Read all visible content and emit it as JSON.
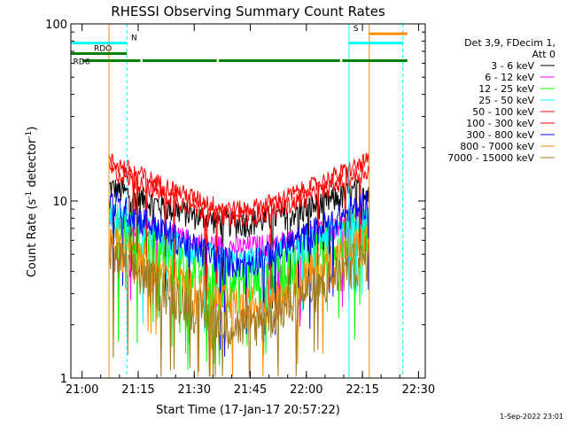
{
  "chart_data": {
    "type": "line",
    "title": "RHESSI Observing Summary Count Rates",
    "xlabel": "Start Time (17-Jan-17 20:57:22)",
    "ylabel_main": "Count Rate (s",
    "ylabel_sup": "-1",
    "ylabel_mid": " detector",
    "ylabel_sup2": "-1",
    "ylabel_end": ")",
    "yscale": "log",
    "ylim": [
      1,
      100
    ],
    "xlim_minutes": [
      20.95,
      22.53
    ],
    "x_ticks": [
      {
        "label": "21:00",
        "value": 21.0
      },
      {
        "label": "21:15",
        "value": 21.25
      },
      {
        "label": "21:30",
        "value": 21.5
      },
      {
        "label": "21:45",
        "value": 21.75
      },
      {
        "label": "22:00",
        "value": 22.0
      },
      {
        "label": "22:15",
        "value": 22.25
      },
      {
        "label": "22:30",
        "value": 22.5
      }
    ],
    "y_ticks": [
      {
        "label": "1",
        "value": 1
      },
      {
        "label": "10",
        "value": 10
      },
      {
        "label": "100",
        "value": 100
      }
    ],
    "legend_header": [
      "Det 3,9, FDecim 1,",
      "Att 0"
    ],
    "series": [
      {
        "name": "3 - 6 keV",
        "color": "#000000",
        "profile": [
          12,
          7.5,
          12
        ],
        "noise": 0.18
      },
      {
        "name": "6 - 12 keV",
        "color": "#ff00ff",
        "profile": [
          8,
          5.5,
          8
        ],
        "noise": 0.15
      },
      {
        "name": "12 - 25 keV",
        "color": "#00ff00",
        "profile": [
          7.5,
          3.5,
          7.5
        ],
        "noise": 0.35
      },
      {
        "name": "25 - 50 keV",
        "color": "#00ffff",
        "profile": [
          8.5,
          4.5,
          8.5
        ],
        "noise": 0.2
      },
      {
        "name": "50 - 100 keV",
        "color": "#ff0000",
        "profile": [
          17,
          9,
          17
        ],
        "noise": 0.12
      },
      {
        "name": "100 - 300 keV",
        "color": "#ff0000",
        "profile": [
          15,
          8,
          15
        ],
        "noise": 0.12
      },
      {
        "name": "300 - 800 keV",
        "color": "#0000ff",
        "profile": [
          10,
          4.5,
          10
        ],
        "noise": 0.2
      },
      {
        "name": "800 - 7000 keV",
        "color": "#ff8c00",
        "profile": [
          6,
          2.5,
          6
        ],
        "noise": 0.3
      },
      {
        "name": "7000 - 15000 keV",
        "color": "#a0781e",
        "profile": [
          5,
          2,
          5
        ],
        "noise": 0.3
      }
    ],
    "flags": [
      {
        "label": "N",
        "color": "#00ffff",
        "segments": [
          [
            20.95,
            21.2
          ],
          [
            22.19,
            22.43
          ]
        ],
        "level": 78
      },
      {
        "label": "RDO",
        "color": "#008000",
        "segments": [
          [
            20.95,
            21.2
          ]
        ],
        "level": 68
      },
      {
        "label": "RD6",
        "color": "#008000",
        "segments": [
          [
            21.0,
            21.26
          ],
          [
            21.27,
            21.6
          ],
          [
            21.61,
            22.15
          ],
          [
            22.16,
            22.45
          ]
        ],
        "level": 62
      },
      {
        "label": "S",
        "color": "#ff8c00",
        "segments": [
          [
            22.28,
            22.45
          ]
        ],
        "level": 88
      }
    ],
    "vlines": [
      {
        "x": 20.95,
        "color": "#00ffff",
        "dashed": false
      },
      {
        "x": 21.2,
        "color": "#00ffff",
        "dashed": true
      },
      {
        "x": 22.19,
        "color": "#00ffff",
        "dashed": false
      },
      {
        "x": 22.43,
        "color": "#00ffff",
        "dashed": true
      },
      {
        "x": 21.12,
        "color": "#ff8c00",
        "dashed": false
      },
      {
        "x": 22.28,
        "color": "#ff8c00",
        "dashed": false
      }
    ],
    "data_start": 21.12,
    "data_end": 22.28,
    "grid": false,
    "legend_position": "right"
  },
  "timestamp": "1-Sep-2022 23:01"
}
